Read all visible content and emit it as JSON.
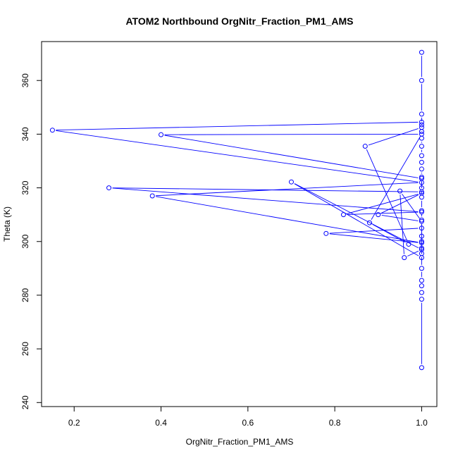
{
  "chart_data": {
    "type": "line",
    "title": "ATOM2 Northbound OrgNitr_Fraction_PM1_AMS",
    "xlabel": "OrgNitr_Fraction_PM1_AMS",
    "ylabel": "Theta (K)",
    "xlim": [
      0.125,
      1.035
    ],
    "ylim": [
      238.5,
      374.5
    ],
    "x_ticks": [
      {
        "value": 0.2,
        "label": "0.2"
      },
      {
        "value": 0.4,
        "label": "0.4"
      },
      {
        "value": 0.6,
        "label": "0.6"
      },
      {
        "value": 0.8,
        "label": "0.8"
      },
      {
        "value": 1.0,
        "label": "1.0"
      }
    ],
    "y_ticks": [
      {
        "value": 240,
        "label": "240"
      },
      {
        "value": 260,
        "label": "260"
      },
      {
        "value": 280,
        "label": "280"
      },
      {
        "value": 300,
        "label": "300"
      },
      {
        "value": 320,
        "label": "320"
      },
      {
        "value": 340,
        "label": "340"
      },
      {
        "value": 360,
        "label": "360"
      }
    ],
    "series_color": "#0000ff",
    "grid": false,
    "series": [
      {
        "points": [
          [
            1.0,
            253.0
          ],
          [
            1.0,
            278.5
          ],
          [
            1.0,
            281.0
          ],
          [
            1.0,
            283.5
          ],
          [
            1.0,
            285.5
          ],
          [
            1.0,
            290.0
          ],
          [
            1.0,
            295.5
          ],
          [
            1.0,
            297.5
          ],
          [
            1.0,
            300.0
          ],
          [
            1.0,
            302.0
          ],
          [
            1.0,
            305.0
          ],
          [
            0.78,
            303.0
          ],
          [
            1.0,
            299.5
          ],
          [
            0.38,
            317.0
          ],
          [
            1.0,
            322.0
          ],
          [
            0.15,
            341.5
          ],
          [
            1.0,
            344.5
          ],
          [
            1.0,
            342.5
          ],
          [
            0.87,
            335.5
          ],
          [
            0.97,
            299.0
          ],
          [
            0.88,
            307.0
          ],
          [
            1.0,
            340.0
          ],
          [
            0.4,
            339.8
          ],
          [
            1.0,
            323.5
          ],
          [
            1.0,
            318.5
          ],
          [
            0.28,
            320.0
          ],
          [
            1.0,
            311.0
          ],
          [
            0.82,
            310.0
          ],
          [
            1.0,
            318.0
          ],
          [
            0.9,
            310.0
          ],
          [
            1.0,
            307.5
          ],
          [
            0.95,
            318.8
          ],
          [
            0.96,
            294.0
          ],
          [
            1.0,
            297.0
          ],
          [
            0.7,
            322.2
          ],
          [
            1.0,
            294.0
          ],
          [
            1.0,
            308.0
          ],
          [
            1.0,
            311.5
          ],
          [
            1.0,
            316.5
          ],
          [
            1.0,
            320.0
          ],
          [
            1.0,
            324.0
          ],
          [
            1.0,
            327.0
          ],
          [
            1.0,
            329.5
          ],
          [
            1.0,
            332.0
          ],
          [
            1.0,
            335.5
          ],
          [
            1.0,
            338.5
          ],
          [
            1.0,
            341.0
          ],
          [
            1.0,
            343.5
          ],
          [
            1.0,
            347.5
          ],
          [
            1.0,
            360.0
          ],
          [
            1.0,
            370.5
          ]
        ]
      }
    ]
  }
}
